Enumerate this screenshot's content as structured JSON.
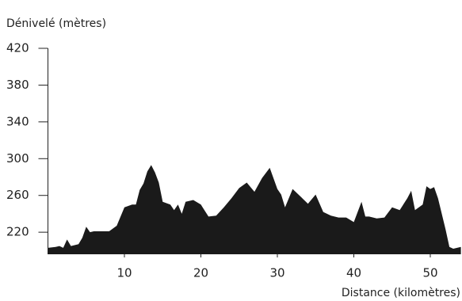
{
  "chart_data": {
    "type": "area",
    "ylabel": "Dénivelé (mètres)",
    "xlabel": "Distance (kilomètres)",
    "color": "#1a1a1a",
    "x": [
      0,
      1,
      1.5,
      2,
      2.5,
      3,
      4,
      4.5,
      5,
      5.5,
      6,
      7,
      8,
      9,
      10,
      11,
      11.5,
      12,
      12.5,
      13,
      13.5,
      14,
      14.5,
      15,
      16,
      16.5,
      17,
      17.5,
      18,
      19,
      20,
      21,
      22,
      23,
      24,
      25,
      26,
      27,
      28,
      29,
      30,
      30.5,
      31,
      32,
      33,
      34,
      35,
      36,
      37,
      38,
      39,
      40,
      41,
      41.5,
      42,
      43,
      44,
      45,
      46,
      47,
      47.5,
      48,
      49,
      49.5,
      50,
      50.5,
      51,
      52,
      52.5,
      53,
      54
    ],
    "y": [
      203,
      204,
      205,
      203,
      212,
      205,
      207,
      214,
      226,
      220,
      221,
      221,
      221,
      227,
      247,
      250,
      250,
      266,
      273,
      286,
      293,
      285,
      274,
      253,
      250,
      244,
      250,
      240,
      253,
      255,
      250,
      237,
      238,
      247,
      257,
      268,
      274,
      264,
      279,
      290,
      267,
      261,
      247,
      267,
      259,
      251,
      261,
      242,
      238,
      236,
      236,
      231,
      253,
      237,
      237,
      235,
      236,
      247,
      244,
      257,
      265,
      244,
      250,
      270,
      267,
      269,
      257,
      223,
      204,
      202,
      204
    ],
    "xlim": [
      0,
      54
    ],
    "ylim": [
      196,
      420
    ],
    "xticks": [
      10,
      20,
      30,
      40,
      50
    ],
    "yticks": [
      220,
      260,
      300,
      340,
      380,
      420
    ]
  }
}
